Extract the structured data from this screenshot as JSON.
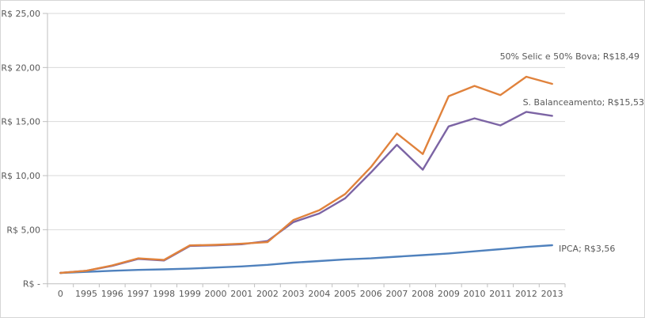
{
  "chart_data": {
    "type": "line",
    "title": "",
    "xlabel": "",
    "ylabel": "",
    "categories": [
      "0",
      "1995",
      "1996",
      "1997",
      "1998",
      "1999",
      "2000",
      "2001",
      "2002",
      "2003",
      "2004",
      "2005",
      "2006",
      "2007",
      "2008",
      "2009",
      "2010",
      "2011",
      "2012",
      "2013"
    ],
    "y_axis": {
      "range": [
        0,
        25
      ],
      "tick_step": 5,
      "ticks": [
        0,
        5,
        10,
        15,
        20,
        25
      ],
      "tick_labels": [
        "R$ -",
        "R$ 5,00",
        "R$ 10,00",
        "R$ 15,00",
        "R$ 20,00",
        "R$ 25,00"
      ]
    },
    "grid": true,
    "legend_position": "none - direct labels at line ends",
    "series": [
      {
        "name": "50% Selic e 50% Bova",
        "end_label": "50% Selic e 50% Bova;  R$18,49",
        "final_value": 18.49,
        "color": "#E0823C",
        "values": [
          1.0,
          1.2,
          1.7,
          2.35,
          2.2,
          3.55,
          3.6,
          3.7,
          3.85,
          5.9,
          6.8,
          8.3,
          10.8,
          13.9,
          12.0,
          17.35,
          18.3,
          17.45,
          19.15,
          18.49
        ]
      },
      {
        "name": "S. Balanceamento",
        "end_label": "S. Balanceamento;  R$15,53",
        "final_value": 15.53,
        "color": "#7C64A4",
        "values": [
          1.0,
          1.2,
          1.65,
          2.3,
          2.15,
          3.5,
          3.55,
          3.65,
          3.95,
          5.7,
          6.5,
          7.9,
          10.3,
          12.85,
          10.55,
          14.55,
          15.3,
          14.65,
          15.9,
          15.53
        ]
      },
      {
        "name": "IPCA",
        "end_label": "IPCA;  R$3,56",
        "final_value": 3.56,
        "color": "#4F81BD",
        "values": [
          1.0,
          1.1,
          1.2,
          1.28,
          1.33,
          1.4,
          1.5,
          1.6,
          1.75,
          1.95,
          2.1,
          2.25,
          2.35,
          2.5,
          2.65,
          2.8,
          3.0,
          3.2,
          3.4,
          3.56
        ]
      }
    ],
    "colors": {
      "grid": "#D9D9D9",
      "axis": "#BFBFBF",
      "text": "#595959",
      "background": "#FFFFFF",
      "border": "#D6D6D6"
    }
  }
}
